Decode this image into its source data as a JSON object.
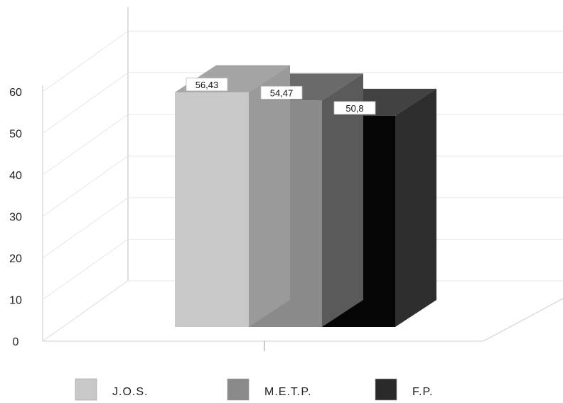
{
  "chart_data": {
    "type": "bar",
    "style": "3d-clustered",
    "categories": [
      ""
    ],
    "series": [
      {
        "name": "J.O.S.",
        "values": [
          56.43
        ],
        "label": "56,43",
        "color": "#c8c8c8",
        "side_color": "#9a9a9a"
      },
      {
        "name": "M.E.T.P.",
        "values": [
          54.47
        ],
        "label": "54,47",
        "color": "#8a8a8a",
        "side_color": "#5a5a5a"
      },
      {
        "name": "F.P.",
        "values": [
          50.8
        ],
        "label": "50,8",
        "color": "#050505",
        "side_color": "#2e2e2e"
      }
    ],
    "yticks": [
      "0",
      "10",
      "20",
      "30",
      "40",
      "50",
      "60"
    ],
    "ylim": [
      0,
      60
    ],
    "grid": true,
    "legend_position": "bottom",
    "title": "",
    "xlabel": "",
    "ylabel": ""
  }
}
